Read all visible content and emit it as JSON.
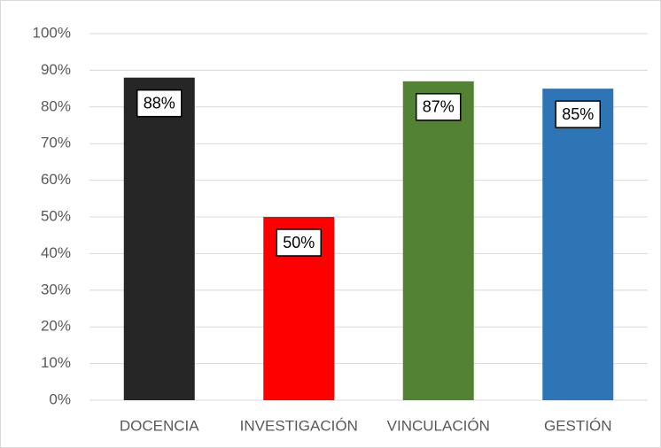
{
  "chart_data": {
    "type": "bar",
    "categories": [
      "DOCENCIA",
      "INVESTIGACIÓN",
      "VINCULACIÓN",
      "GESTIÓN"
    ],
    "values": [
      88,
      50,
      87,
      85
    ],
    "value_labels": [
      "88%",
      "50%",
      "87%",
      "85%"
    ],
    "colors": [
      "#262626",
      "#ff0000",
      "#548235",
      "#2e75b6"
    ],
    "ylim": [
      0,
      100
    ],
    "yticks": [
      {
        "value": 0,
        "label": "0%"
      },
      {
        "value": 10,
        "label": "10%"
      },
      {
        "value": 20,
        "label": "20%"
      },
      {
        "value": 30,
        "label": "30%"
      },
      {
        "value": 40,
        "label": "40%"
      },
      {
        "value": 50,
        "label": "50%"
      },
      {
        "value": 60,
        "label": "60%"
      },
      {
        "value": 70,
        "label": "70%"
      },
      {
        "value": 80,
        "label": "80%"
      },
      {
        "value": 90,
        "label": "90%"
      },
      {
        "value": 100,
        "label": "100%"
      }
    ],
    "grid": true
  }
}
